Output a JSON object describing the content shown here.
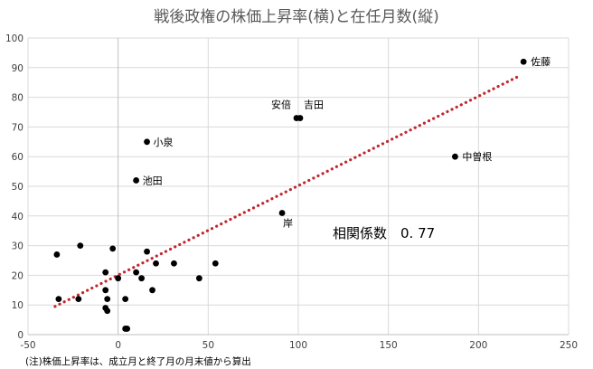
{
  "chart_data": {
    "type": "scatter",
    "title": "戦後政権の株価上昇率(横)と在任月数(縦)",
    "xlim": [
      -50,
      250
    ],
    "ylim": [
      0,
      100
    ],
    "x_ticks": [
      -50,
      0,
      50,
      100,
      150,
      200,
      250
    ],
    "y_ticks": [
      0,
      10,
      20,
      30,
      40,
      50,
      60,
      70,
      80,
      90,
      100
    ],
    "grid": true,
    "colors": {
      "points": "#000000",
      "trendline": "#c0282d",
      "grid": "#d9d9d9",
      "title": "#595959"
    },
    "points": [
      {
        "x": 225,
        "y": 92,
        "label": "佐藤"
      },
      {
        "x": 99,
        "y": 73,
        "label": "安倍"
      },
      {
        "x": 101,
        "y": 73,
        "label": "吉田"
      },
      {
        "x": 16,
        "y": 65,
        "label": "小泉"
      },
      {
        "x": 187,
        "y": 60,
        "label": "中曽根"
      },
      {
        "x": 10,
        "y": 52,
        "label": "池田"
      },
      {
        "x": 91,
        "y": 41,
        "label": "岸"
      },
      {
        "x": -34,
        "y": 27
      },
      {
        "x": -21,
        "y": 30
      },
      {
        "x": -3,
        "y": 29
      },
      {
        "x": 16,
        "y": 28
      },
      {
        "x": 21,
        "y": 24
      },
      {
        "x": 31,
        "y": 24
      },
      {
        "x": 54,
        "y": 24
      },
      {
        "x": -7,
        "y": 21
      },
      {
        "x": 10,
        "y": 21
      },
      {
        "x": 0,
        "y": 19
      },
      {
        "x": 13,
        "y": 19
      },
      {
        "x": 45,
        "y": 19
      },
      {
        "x": -7,
        "y": 15
      },
      {
        "x": 19,
        "y": 15
      },
      {
        "x": -33,
        "y": 12
      },
      {
        "x": -22,
        "y": 12
      },
      {
        "x": -6,
        "y": 12
      },
      {
        "x": 4,
        "y": 12
      },
      {
        "x": -7,
        "y": 9
      },
      {
        "x": -6,
        "y": 8
      },
      {
        "x": 4,
        "y": 2
      },
      {
        "x": 5,
        "y": 2
      }
    ],
    "trendline": {
      "x": [
        -35,
        222
      ],
      "y": [
        9.5,
        87
      ]
    },
    "annotation": "相関係数　0. 77",
    "footnote": "(注)株価上昇率は、成立月と終了月の月末値から算出"
  }
}
